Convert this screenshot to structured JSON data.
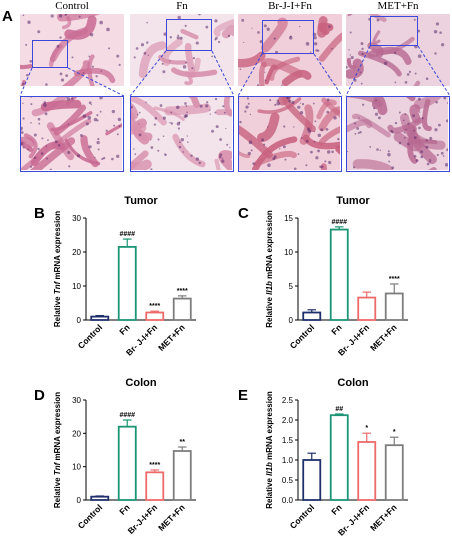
{
  "figure": {
    "panel_a": {
      "letter": "A",
      "groups": [
        {
          "label": "Control",
          "tissue": "#c96b93",
          "bg": "#f4dbe4"
        },
        {
          "label": "Fn",
          "tissue": "#d890ad",
          "bg": "#f3e3ea"
        },
        {
          "label": "Br-J-I+Fn",
          "tissue": "#c8627f",
          "bg": "#f0cfda"
        },
        {
          "label": "MET+Fn",
          "tissue": "#b86a92",
          "bg": "#ecd2de"
        }
      ]
    },
    "colors": {
      "control": "#1f2f6b",
      "fn": "#1b9574",
      "brji": "#ee6a6a",
      "met": "#7d7d7d",
      "roi": "#3b48d8"
    }
  },
  "chart_data": [
    {
      "letter": "B",
      "type": "bar",
      "title": "Tumor",
      "ylabel_pre": "Relative ",
      "ylabel_gene": "Tnf",
      "ylabel_post": " mRNA expression",
      "categories": [
        "Control",
        "Fn",
        "Br- J-I+Fn",
        "MET+Fn"
      ],
      "values": [
        1,
        21.5,
        2.2,
        6.3
      ],
      "errors": [
        0.3,
        2.3,
        0.4,
        0.8
      ],
      "annotations": [
        "",
        "####",
        "****",
        "****"
      ],
      "ylim": [
        0,
        30
      ],
      "yticks": [
        0,
        10,
        20,
        30
      ]
    },
    {
      "letter": "C",
      "type": "bar",
      "title": "Tumor",
      "ylabel_pre": "Relative ",
      "ylabel_gene": "Il1b",
      "ylabel_post": " mRNA expression",
      "categories": [
        "Control",
        "Fn",
        "Br- J-I+Fn",
        "MET+Fn"
      ],
      "values": [
        1.1,
        13.3,
        3.3,
        3.9
      ],
      "errors": [
        0.4,
        0.4,
        0.8,
        1.4
      ],
      "annotations": [
        "",
        "####",
        "",
        "****"
      ],
      "ylim": [
        0,
        15
      ],
      "yticks": [
        0,
        5,
        10,
        15
      ]
    },
    {
      "letter": "D",
      "type": "bar",
      "title": "Colon",
      "ylabel_pre": "Relative ",
      "ylabel_gene": "Tnf",
      "ylabel_post": " mRNA expression",
      "categories": [
        "Control",
        "Fn",
        "Br-J-I+Fn",
        "MET+Fn"
      ],
      "values": [
        1,
        22,
        8.3,
        14.7
      ],
      "errors": [
        0.2,
        2.0,
        0.7,
        1.2
      ],
      "annotations": [
        "",
        "####",
        "****",
        "**"
      ],
      "ylim": [
        0,
        30
      ],
      "yticks": [
        0,
        10,
        20,
        30
      ]
    },
    {
      "letter": "E",
      "type": "bar",
      "title": "Colon",
      "ylabel_pre": "Relative ",
      "ylabel_gene": "Il1b",
      "ylabel_post": " mRNA expression",
      "categories": [
        "Control",
        "Fn",
        "Br- J-I+Fn",
        "MET+Fn"
      ],
      "values": [
        1.0,
        2.12,
        1.45,
        1.37
      ],
      "errors": [
        0.17,
        0.03,
        0.22,
        0.2
      ],
      "annotations": [
        "",
        "##",
        "*",
        "*"
      ],
      "ylim": [
        0,
        2.5
      ],
      "yticks": [
        0.0,
        0.5,
        1.0,
        1.5,
        2.0,
        2.5
      ]
    }
  ]
}
